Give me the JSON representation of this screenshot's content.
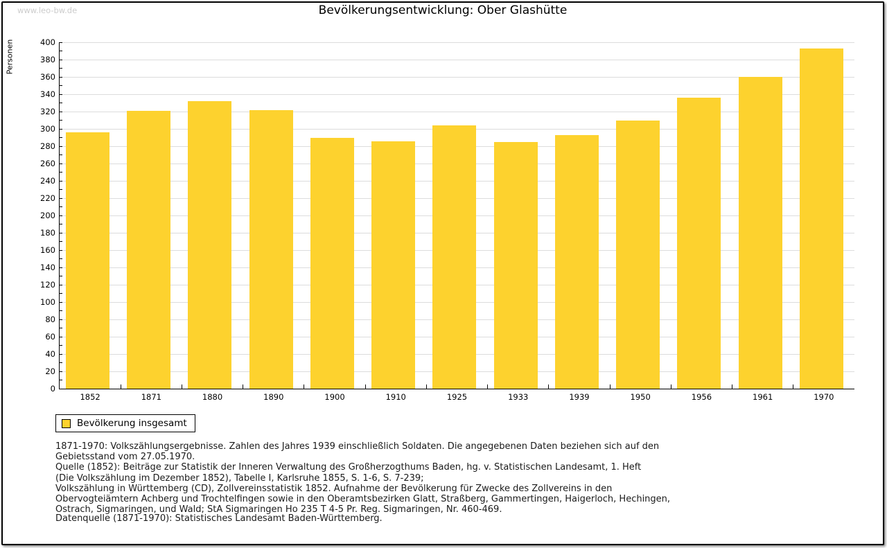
{
  "page": {
    "watermark": "www.leo-bw.de",
    "title": "Bevölkerungsentwicklung: Ober Glashütte"
  },
  "chart_data": {
    "type": "bar",
    "title": "Bevölkerungsentwicklung: Ober Glashütte",
    "xlabel": "",
    "ylabel": "Personen",
    "categories": [
      "1852",
      "1871",
      "1880",
      "1890",
      "1900",
      "1910",
      "1925",
      "1933",
      "1939",
      "1950",
      "1956",
      "1961",
      "1970"
    ],
    "values": [
      296,
      321,
      332,
      322,
      290,
      286,
      304,
      285,
      293,
      310,
      336,
      360,
      393
    ],
    "ylim": [
      0,
      400
    ],
    "ytick_step": 20,
    "yminor_step": 10,
    "grid": true,
    "legend_position": "bottom-left",
    "legend_entries": [
      "Bevölkerung insgesamt"
    ]
  },
  "legend": {
    "label": "Bevölkerung insgesamt"
  },
  "colors": {
    "bar": "#FDD22E",
    "grid": "#DCDCDC",
    "axis": "#000000",
    "watermark": "#CCCCCC"
  },
  "footnotes": {
    "lines": [
      "1871-1970: Volkszählungsergebnisse. Zahlen des Jahres 1939 einschließlich Soldaten. Die angegebenen Daten beziehen sich auf den",
      "Gebietsstand vom 27.05.1970.",
      "Quelle (1852): Beiträge zur Statistik der Inneren Verwaltung des Großherzogthums Baden, hg. v. Statistischen Landesamt, 1. Heft",
      "(Die Volkszählung im Dezember 1852), Tabelle I, Karlsruhe 1855, S. 1-6, S. 7-239;",
      "Volkszählung in Württemberg (CD), Zollvereinsstatistik 1852. Aufnahme der Bevölkerung für Zwecke des Zollvereins in den",
      "Obervogteiämtern Achberg und Trochtelfingen sowie in den Oberamtsbezirken Glatt, Straßberg, Gammertingen, Haigerloch, Hechingen,",
      "Ostrach, Sigmaringen, und Wald; StA Sigmaringen Ho 235 T 4-5 Pr. Reg. Sigmaringen, Nr. 460-469."
    ],
    "datasource": "Datenquelle (1871-1970): Statistisches Landesamt Baden-Württemberg."
  }
}
